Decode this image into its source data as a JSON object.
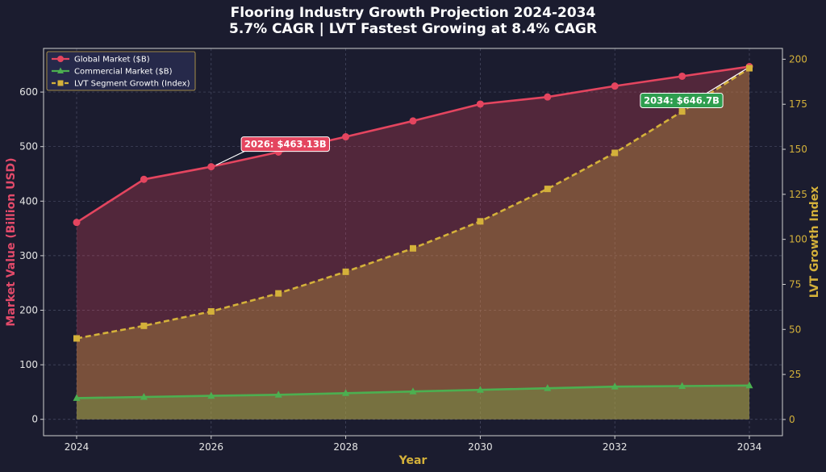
{
  "chart_data": {
    "type": "line",
    "title": "Flooring Industry Growth Projection 2024-2034",
    "subtitle": "5.7% CAGR | LVT Fastest Growing at 8.4% CAGR",
    "xlabel": "Year",
    "ylabel": "Market Value (Billion USD)",
    "ylabel_right": "LVT Growth Index",
    "x": [
      2024,
      2025,
      2026,
      2027,
      2028,
      2029,
      2030,
      2031,
      2032,
      2033,
      2034
    ],
    "x_ticks": [
      "2024",
      "2026",
      "2028",
      "2030",
      "2032",
      "2034"
    ],
    "ylim": [
      -30,
      680
    ],
    "y_ticks": [
      "0",
      "100",
      "200",
      "300",
      "400",
      "500",
      "600"
    ],
    "ylim_right": [
      -9,
      206
    ],
    "y_ticks_right": [
      "0",
      "25",
      "50",
      "75",
      "100",
      "125",
      "150",
      "175",
      "200"
    ],
    "grid": true,
    "legend_position": "top-left",
    "series": [
      {
        "name": "Global Market ($B)",
        "axis": "left",
        "color": "#e4455f",
        "marker": "circle",
        "style": "solid",
        "values": [
          361,
          440,
          463.13,
          490,
          518,
          547,
          578,
          591,
          611,
          629,
          646.7
        ]
      },
      {
        "name": "Commercial Market ($B)",
        "axis": "left",
        "color": "#4caf50",
        "marker": "triangle",
        "style": "solid",
        "values": [
          39,
          41,
          43,
          45,
          48,
          51,
          54,
          57,
          60,
          61,
          62
        ]
      },
      {
        "name": "LVT Segment Growth (Index)",
        "axis": "right",
        "color": "#d4b13a",
        "marker": "square",
        "style": "dashed",
        "values": [
          45,
          52,
          60,
          70,
          82,
          95,
          110,
          128,
          148,
          171,
          195
        ]
      }
    ],
    "annotations": [
      {
        "text": "2026: $463.13B",
        "x": 2026,
        "y": 463.13,
        "color": "#e4455f"
      },
      {
        "text": "2034: $646.7B",
        "x": 2034,
        "y": 646.7,
        "color": "#2e9e4f"
      }
    ]
  }
}
